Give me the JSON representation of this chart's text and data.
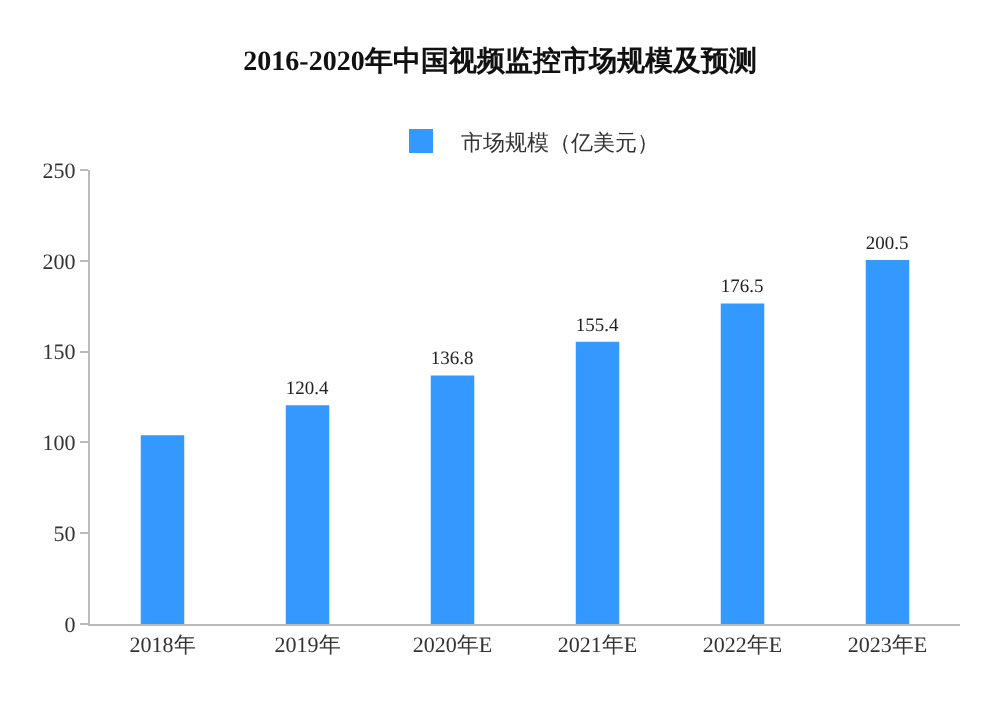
{
  "chart_data": {
    "type": "bar",
    "title": "2016-2020年中国视频监控市场规模及预测",
    "categories": [
      "2018年",
      "2019年",
      "2020年E",
      "2021年E",
      "2022年E",
      "2023年E"
    ],
    "series": [
      {
        "name": "市场规模（亿美元）",
        "color": "#3399ff",
        "values": [
          104,
          120.4,
          136.8,
          155.4,
          176.5,
          200.5
        ],
        "value_labels": [
          null,
          "120.4",
          "136.8",
          "155.4",
          "176.5",
          "200.5"
        ]
      }
    ],
    "ylim": [
      0,
      250
    ],
    "yticks": [
      0,
      50,
      100,
      150,
      200,
      250
    ],
    "grid": false,
    "legend": "top"
  }
}
